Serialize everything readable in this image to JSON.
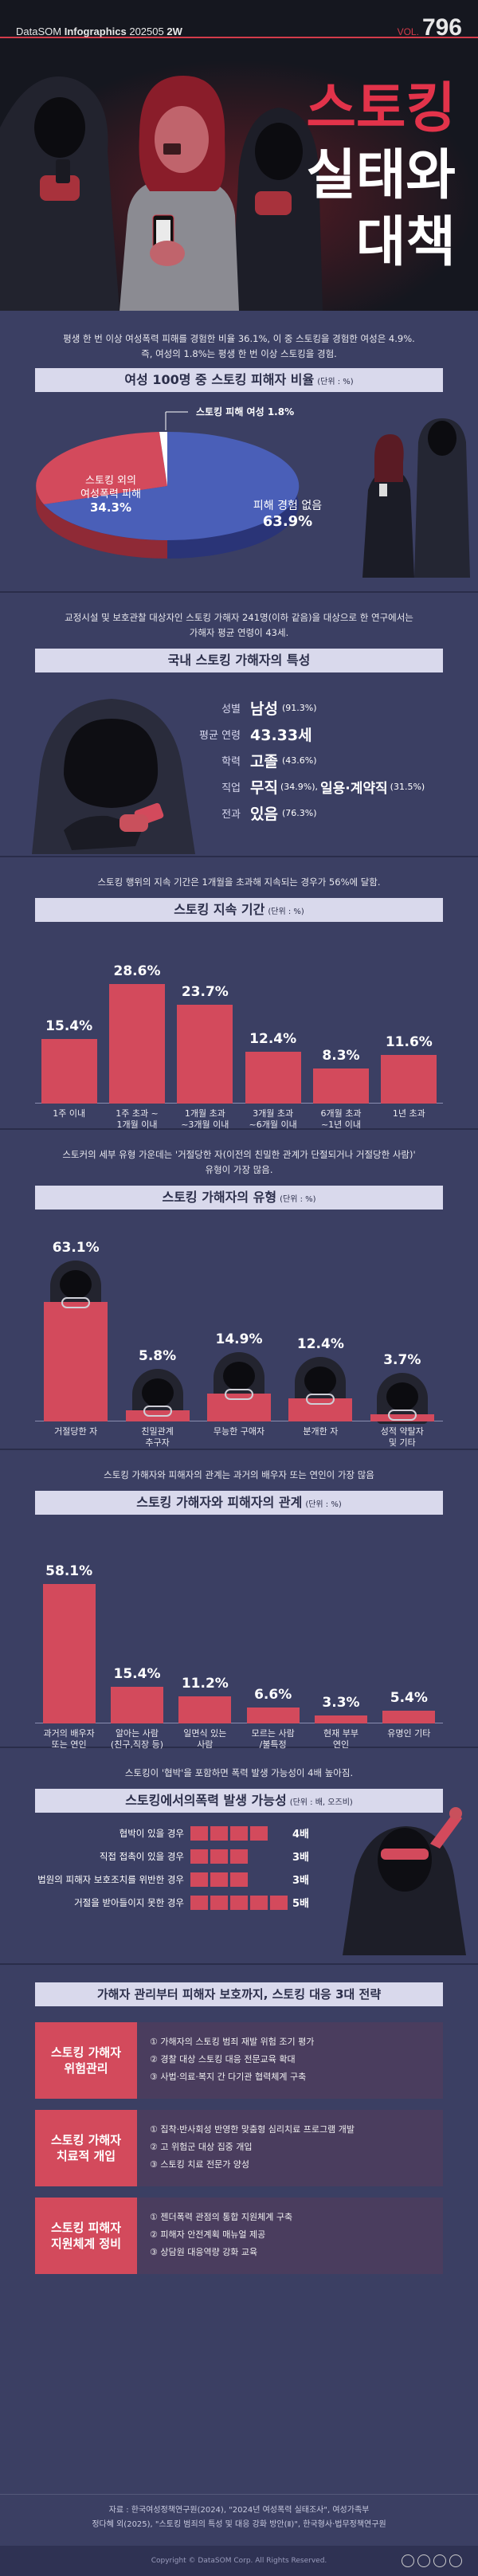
{
  "header": {
    "brand": "DataSOM",
    "brand_sub": "Infographics",
    "date": "202505",
    "suffix": "2W",
    "vol_label": "VOL.",
    "vol_number": "796",
    "title_line1": "스토킹",
    "title_line2": "실태와",
    "title_line3": "대책"
  },
  "section1": {
    "intro1": "평생 한 번 이상 여성폭력 피해를 경험한 비율 36.1%, 이 중 스토킹을 경험한 여성은 4.9%.",
    "intro2": "즉, 여성의 1.8%는 평생 한 번 이상 스토킹을 경험.",
    "title": "여성 100명 중 스토킹 피해자 비율",
    "unit": "(단위 : %)",
    "slice_a_label": "스토킹 피해 여성 1.8%",
    "slice_b_label1": "스토킹 외의",
    "slice_b_label2": "여성폭력 피해",
    "slice_b_value": "34.3%",
    "slice_c_label": "피해 경험 없음",
    "slice_c_value": "63.9%",
    "colors": {
      "red": "#d34a5c",
      "blue": "#4a5fb8"
    }
  },
  "section2": {
    "intro1": "교정시설 및 보호관찰 대상자인 스토킹 가해자 241명(이하 같음)을 대상으로 한 연구에서는",
    "intro2": "가해자 평균 연령이 43세.",
    "title": "국내 스토킹 가해자의 특성",
    "items": [
      {
        "k": "성별",
        "v": "남성",
        "note": "(91.3%)"
      },
      {
        "k": "평균 연령",
        "v": "43.33세",
        "note": ""
      },
      {
        "k": "학력",
        "v": "고졸",
        "note": "(43.6%)"
      },
      {
        "k": "직업",
        "v": "무직",
        "note": "(34.9%),",
        "v2": "일용·계약직",
        "note2": "(31.5%)"
      },
      {
        "k": "전과",
        "v": "있음",
        "note": "(76.3%)"
      }
    ]
  },
  "section3": {
    "intro": "스토킹 행위의 지속 기간은 1개월을 초과해 지속되는 경우가 56%에 달함.",
    "title": "스토킹 지속 기간",
    "unit": "(단위 : %)",
    "bars": [
      {
        "value": "15.4%",
        "l1": "1주 이내",
        "l2": ""
      },
      {
        "value": "28.6%",
        "l1": "1주 초과 ~",
        "l2": "1개월 이내"
      },
      {
        "value": "23.7%",
        "l1": "1개월 초과",
        "l2": "~3개월 이내"
      },
      {
        "value": "12.4%",
        "l1": "3개월 초과",
        "l2": "~6개월 이내"
      },
      {
        "value": "8.3%",
        "l1": "6개월 초과",
        "l2": "~1년 이내"
      },
      {
        "value": "11.6%",
        "l1": "1년 초과",
        "l2": ""
      }
    ],
    "nums": [
      15.4,
      28.6,
      23.7,
      12.4,
      8.3,
      11.6
    ]
  },
  "section4": {
    "intro1": "스토커의 세부 유형 가운데는 '거절당한 자(이전의 친밀한 관계가 단절되거나 거절당한 사람)'",
    "intro2": "유형이 가장 많음.",
    "title": "스토킹 가해자의 유형",
    "unit": "(단위 : %)",
    "bars": [
      {
        "value": "63.1%",
        "l1": "거절당한 자",
        "l2": ""
      },
      {
        "value": "5.8%",
        "l1": "친밀관계",
        "l2": "추구자"
      },
      {
        "value": "14.9%",
        "l1": "무능한 구애자",
        "l2": ""
      },
      {
        "value": "12.4%",
        "l1": "분개한 자",
        "l2": ""
      },
      {
        "value": "3.7%",
        "l1": "성적 약탈자",
        "l2": "및 기타"
      }
    ],
    "nums": [
      63.1,
      5.8,
      14.9,
      12.4,
      3.7
    ]
  },
  "section5": {
    "intro": "스토킹 가해자와 피해자의 관계는 과거의 배우자 또는 연인이 가장 많음",
    "title": "스토킹 가해자와 피해자의 관계",
    "unit": "(단위 : %)",
    "bars": [
      {
        "value": "58.1%",
        "l1": "과거의 배우자",
        "l2": "또는 연인"
      },
      {
        "value": "15.4%",
        "l1": "알아는 사람",
        "l2": "(친구,직장 등)"
      },
      {
        "value": "11.2%",
        "l1": "일면식 있는",
        "l2": "사람"
      },
      {
        "value": "6.6%",
        "l1": "모르는 사람",
        "l2": "/불특정"
      },
      {
        "value": "3.3%",
        "l1": "현재 부부",
        "l2": "연인"
      },
      {
        "value": "5.4%",
        "l1": "유명인 기타",
        "l2": ""
      }
    ],
    "nums": [
      58.1,
      15.4,
      11.2,
      6.6,
      3.3,
      5.4
    ]
  },
  "section6": {
    "intro": "스토킹이 '협박'을 포함하면 폭력 발생 가능성이 4배 높아짐.",
    "title": "스토킹에서의폭력 발생 가능성",
    "unit": "(단위 : 배, 오즈비)",
    "rows": [
      {
        "label": "협박이 있을 경우",
        "value": "4배",
        "n": 4
      },
      {
        "label": "직접 접촉이 있을 경우",
        "value": "3배",
        "n": 3
      },
      {
        "label": "법원의 피해자 보호조치를 위반한 경우",
        "value": "3배",
        "n": 3
      },
      {
        "label": "거절을 받아들이지 못한 경우",
        "value": "5배",
        "n": 5
      }
    ]
  },
  "section7": {
    "title": "가해자 관리부터 피해자 보호까지, 스토킹 대응 3대 전략",
    "strategies": [
      {
        "h1": "스토킹 가해자",
        "h2": "위험관리",
        "items": [
          "① 가해자의 스토킹 범죄 재발 위험 조기 평가",
          "② 경찰 대상 스토킹 대응 전문교육 확대",
          "③ 사법·의료·복지 간 다기관 협력체계 구축"
        ]
      },
      {
        "h1": "스토킹 가해자",
        "h2": "치료적 개입",
        "items": [
          "① 집착·반사회성 반영한 맞춤형 심리치료 프로그램 개발",
          "② 고 위험군 대상 집중 개입",
          "③ 스토킹 치료 전문가 양성"
        ]
      },
      {
        "h1": "스토킹 피해자",
        "h2": "지원체계 정비",
        "items": [
          "① 젠더폭력 관점의 통합 지원체계 구축",
          "② 피해자 안전계획 매뉴얼 제공",
          "③ 상담원 대응역량 강화 교육"
        ]
      }
    ]
  },
  "footer": {
    "source1": "자료 : 한국여성정책연구원(2024), \"2024년 여성폭력 실태조사\", 여성가족부",
    "source2": "정다혜 외(2025), \"스토킹 범죄의 특성 및 대응 강화 방안(Ⅱ)\", 한국형사·법무정책연구원",
    "copyright": "Copyright © DataSOM Corp. All Rights Reserved."
  }
}
